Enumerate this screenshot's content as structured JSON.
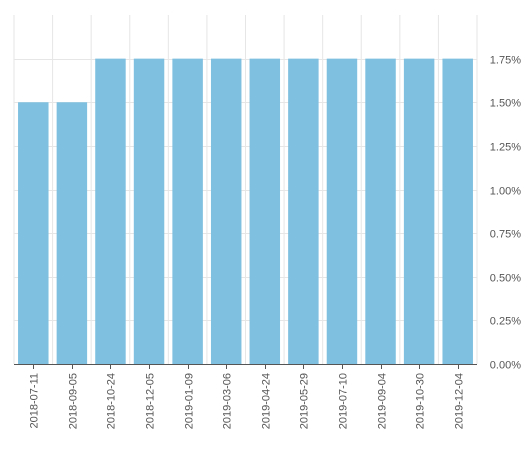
{
  "chart_data": {
    "type": "bar",
    "categories": [
      "2018-07-11",
      "2018-09-05",
      "2018-10-24",
      "2018-12-05",
      "2019-01-09",
      "2019-03-06",
      "2019-04-24",
      "2019-05-29",
      "2019-07-10",
      "2019-09-04",
      "2019-10-30",
      "2019-12-04"
    ],
    "values": [
      1.5,
      1.5,
      1.75,
      1.75,
      1.75,
      1.75,
      1.75,
      1.75,
      1.75,
      1.75,
      1.75,
      1.75
    ],
    "ylim": [
      0,
      2.0
    ],
    "yticks": [
      {
        "value": 0.0,
        "label": "0.00%"
      },
      {
        "value": 0.25,
        "label": "0.25%"
      },
      {
        "value": 0.5,
        "label": "0.50%"
      },
      {
        "value": 0.75,
        "label": "0.75%"
      },
      {
        "value": 1.0,
        "label": "1.00%"
      },
      {
        "value": 1.25,
        "label": "1.25%"
      },
      {
        "value": 1.5,
        "label": "1.50%"
      },
      {
        "value": 1.75,
        "label": "1.75%"
      }
    ],
    "y_axis_position": "right",
    "grid": true,
    "bar_color": "#7fc0e0",
    "grid_color": "#e6e6e6",
    "axis_color": "#555555"
  }
}
